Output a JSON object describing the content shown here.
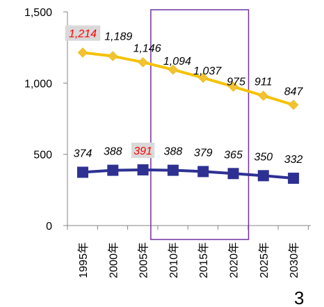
{
  "chart_data": {
    "type": "line",
    "categories": [
      "1995年",
      "2000年",
      "2005年",
      "2010年",
      "2015年",
      "2020年",
      "2025年",
      "2030年"
    ],
    "series": [
      {
        "values": [
          1214,
          1189,
          1146,
          1094,
          1037,
          975,
          911,
          847
        ],
        "labels": [
          "1,214",
          "1,189",
          "1,146",
          "1,094",
          "1,037",
          "975",
          "911",
          "847"
        ],
        "color": "#F5C200",
        "marker": "diamond",
        "marker_color": "#F2C230"
      },
      {
        "values": [
          374,
          388,
          391,
          388,
          379,
          365,
          350,
          332
        ],
        "labels": [
          "374",
          "388",
          "391",
          "388",
          "379",
          "365",
          "350",
          "332"
        ],
        "color": "#2E3192",
        "marker": "square",
        "marker_color": "#2E3192"
      }
    ],
    "highlighted_labels": [
      {
        "series": 0,
        "index": 0
      },
      {
        "series": 1,
        "index": 2
      }
    ],
    "highlight_color": "#FF0000",
    "highlight_box_color": "#D9D9D9",
    "highlight_region": {
      "from": "2010年",
      "to": "2020年",
      "color": "#7030A0"
    },
    "ylim": [
      0,
      1500
    ],
    "yticks": [
      0,
      500,
      1000,
      1500
    ],
    "ytick_labels": [
      "0",
      "500",
      "1,000",
      "1,500"
    ],
    "grid": false,
    "title": "",
    "xlabel": "",
    "ylabel": ""
  },
  "page_number": "3"
}
